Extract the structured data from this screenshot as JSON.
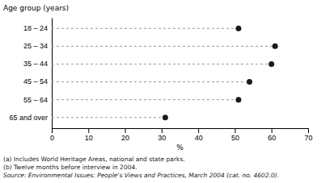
{
  "chart_data": {
    "type": "lollipop",
    "orientation": "horizontal",
    "categories": [
      "18 – 24",
      "25 – 34",
      "35 – 44",
      "45 – 54",
      "55 – 64",
      "65 and over"
    ],
    "values": [
      51,
      61,
      60,
      54,
      51,
      31
    ],
    "xlabel": "%",
    "ylabel": "Age group (years)",
    "xlim": [
      0,
      70
    ],
    "xticks": [
      0,
      10,
      20,
      30,
      40,
      50,
      60,
      70
    ],
    "color": "#1a1a1a",
    "marker": "circle",
    "line_style": "dashed",
    "grid": false,
    "annotations": [
      "(a) Includes World Heritage Areas, national and state parks.",
      "(b) Twelve months before interview in 2004.",
      "Source: Environmental Issues: People's Views and Practices, March 2004 (cat. no. 4602.0)."
    ]
  }
}
